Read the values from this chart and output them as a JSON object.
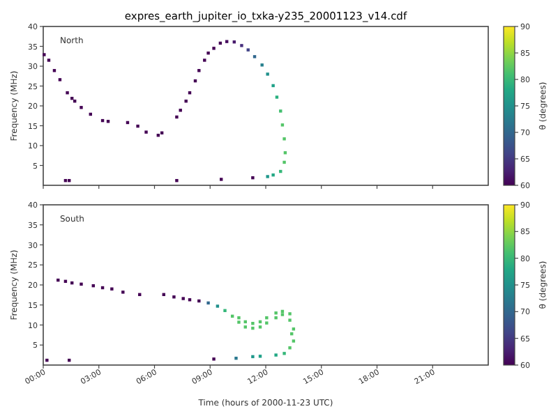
{
  "chart_data": [
    {
      "type": "scatter",
      "title": "expres_earth_jupiter_io_txka-y235_20001123_v14.cdf",
      "ylabel": "Frequency (MHz)",
      "clabel": "θ (degrees)",
      "annotations": [
        "North"
      ],
      "marker": "square",
      "tick_labels": "y",
      "xlim": [
        0,
        24
      ],
      "xticks": [
        {
          "value": 0,
          "label": null
        },
        {
          "value": 3,
          "label": null
        },
        {
          "value": 6,
          "label": null
        },
        {
          "value": 9,
          "label": null
        },
        {
          "value": 12,
          "label": null
        },
        {
          "value": 15,
          "label": null
        },
        {
          "value": 18,
          "label": null
        },
        {
          "value": 21,
          "label": null
        }
      ],
      "ylim": [
        0,
        40
      ],
      "yticks": [
        5,
        10,
        15,
        20,
        25,
        30,
        35,
        40
      ],
      "clim": [
        60,
        90
      ],
      "cticks": [
        60,
        65,
        70,
        75,
        80,
        85,
        90
      ],
      "x": [
        0.05,
        0.3,
        0.6,
        0.9,
        1.3,
        1.55,
        1.7,
        2.05,
        2.55,
        3.2,
        3.5,
        4.55,
        5.1,
        5.55,
        6.2,
        6.4,
        7.2,
        7.4,
        7.7,
        7.9,
        8.2,
        8.4,
        8.7,
        8.9,
        9.2,
        9.55,
        9.9,
        10.3,
        10.7,
        11.05,
        11.4,
        11.8,
        12.1,
        12.4,
        12.6,
        12.8,
        12.9,
        13.0,
        13.05,
        13.0,
        12.8,
        12.4,
        12.1,
        11.3,
        9.6,
        7.2,
        1.4,
        1.2
      ],
      "values": [
        32.9,
        31.5,
        28.9,
        26.6,
        23.3,
        21.9,
        21.2,
        19.6,
        17.9,
        16.3,
        16.1,
        15.8,
        14.9,
        13.4,
        12.6,
        13.2,
        17.2,
        18.9,
        21.2,
        23.3,
        26.3,
        28.9,
        31.5,
        33.3,
        34.5,
        35.8,
        36.2,
        36.1,
        35.2,
        34.1,
        32.4,
        30.3,
        28,
        25.1,
        22.2,
        18.7,
        15.2,
        11.7,
        8.2,
        5.8,
        3.5,
        2.6,
        2.2,
        1.9,
        1.5,
        1.2,
        1.2,
        1.2
      ],
      "cvalues": [
        60,
        60,
        60,
        60,
        60,
        60,
        60,
        60,
        60,
        60,
        60,
        60,
        60,
        60,
        60,
        60,
        60,
        60,
        60,
        60,
        60,
        60,
        60,
        60,
        60,
        60,
        61,
        62,
        64,
        66,
        70,
        73,
        75,
        77,
        79,
        81,
        82,
        82,
        82,
        82,
        80,
        78,
        76,
        60,
        60,
        60,
        60,
        60
      ]
    },
    {
      "type": "scatter",
      "xlabel": "Time (hours of 2000-11-23 UTC)",
      "ylabel": "Frequency (MHz)",
      "clabel": "θ (degrees)",
      "annotations": [
        "South"
      ],
      "marker": "square",
      "xlim": [
        0,
        24
      ],
      "xticks": [
        {
          "value": 0,
          "label": "00:00"
        },
        {
          "value": 3,
          "label": "03:00"
        },
        {
          "value": 6,
          "label": "06:00"
        },
        {
          "value": 9,
          "label": "09:00"
        },
        {
          "value": 12,
          "label": "12:00"
        },
        {
          "value": 15,
          "label": "15:00"
        },
        {
          "value": 18,
          "label": "18:00"
        },
        {
          "value": 21,
          "label": "21:00"
        }
      ],
      "ylim": [
        0,
        40
      ],
      "yticks": [
        5,
        10,
        15,
        20,
        25,
        30,
        35,
        40
      ],
      "clim": [
        60,
        90
      ],
      "cticks": [
        60,
        65,
        70,
        75,
        80,
        85,
        90
      ],
      "x": [
        0.8,
        1.2,
        1.55,
        2.05,
        2.7,
        3.2,
        3.7,
        4.3,
        5.2,
        6.5,
        7.05,
        7.55,
        7.9,
        8.4,
        8.9,
        9.4,
        9.8,
        10.2,
        10.55,
        10.9,
        11.3,
        11.7,
        12.05,
        12.55,
        12.9,
        13.3,
        13.4,
        13.3,
        13.0,
        12.55,
        11.7,
        11.3,
        10.4,
        9.2,
        1.4,
        0.2,
        10.55,
        10.9,
        11.3,
        11.7,
        12.05,
        12.55,
        12.9,
        13.3,
        13.5,
        13.5
      ],
      "values": [
        21.2,
        20.9,
        20.5,
        20.2,
        19.8,
        19.3,
        19.0,
        18.2,
        17.6,
        17.6,
        17.0,
        16.6,
        16.3,
        16.0,
        15.5,
        14.7,
        13.6,
        12.2,
        10.7,
        9.5,
        9.2,
        9.5,
        10.5,
        11.8,
        12.6,
        11.2,
        7.8,
        4.3,
        2.9,
        2.5,
        2.2,
        2.1,
        1.7,
        1.5,
        1.2,
        1.2,
        11.8,
        10.8,
        10.4,
        10.8,
        11.8,
        13.0,
        13.4,
        12.8,
        9.0,
        6.0
      ],
      "cvalues": [
        60,
        60,
        60,
        60,
        60,
        60,
        60,
        60,
        60,
        60,
        60,
        60,
        60,
        60,
        70,
        75,
        80,
        82,
        82,
        82,
        82,
        82,
        82,
        82,
        82,
        82,
        82,
        82,
        80,
        78,
        77,
        76,
        72,
        60,
        60,
        60,
        82,
        82,
        82,
        82,
        82,
        82,
        82,
        82,
        82,
        82
      ]
    }
  ]
}
